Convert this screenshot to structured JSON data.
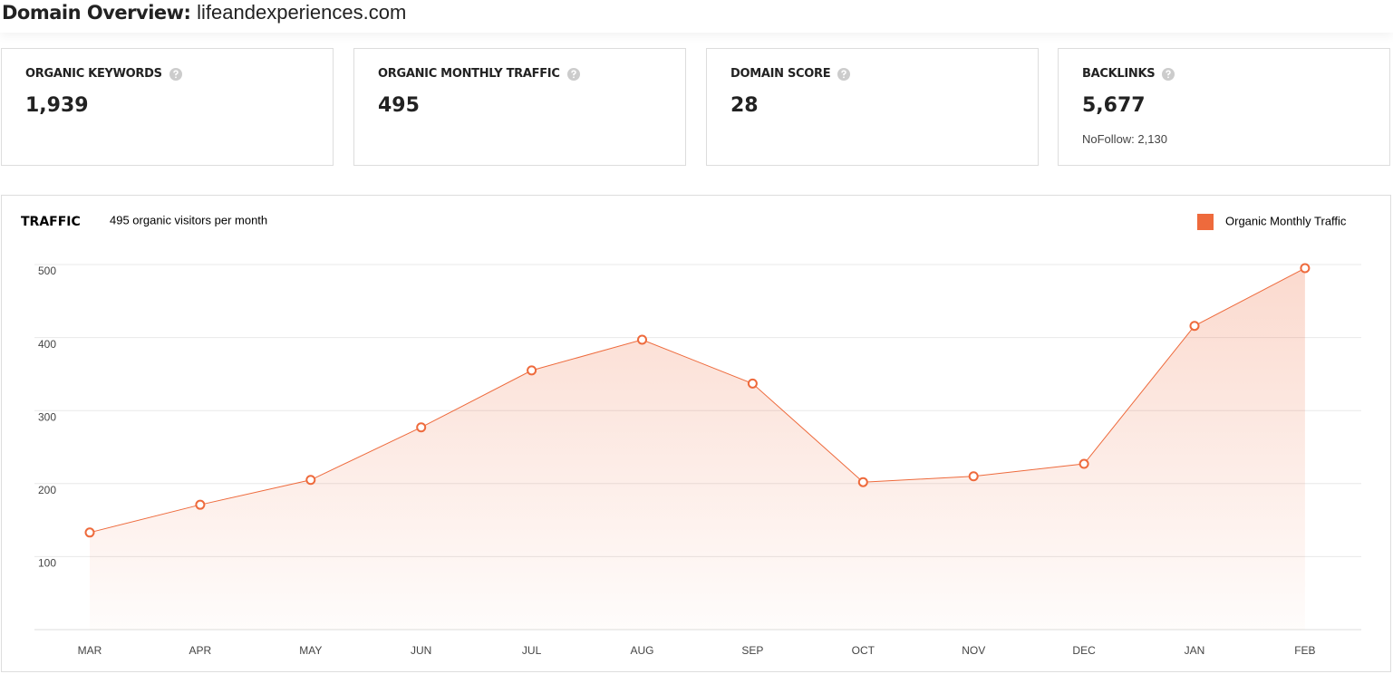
{
  "header": {
    "title": "Domain Overview:",
    "domain": "lifeandexperiences.com"
  },
  "cards": [
    {
      "label": "ORGANIC KEYWORDS",
      "value": "1,939"
    },
    {
      "label": "ORGANIC MONTHLY TRAFFIC",
      "value": "495"
    },
    {
      "label": "DOMAIN SCORE",
      "value": "28"
    },
    {
      "label": "BACKLINKS",
      "value": "5,677",
      "note": "NoFollow: 2,130"
    }
  ],
  "chart_data": {
    "type": "area",
    "title": "TRAFFIC",
    "subtitle": "495 organic visitors per month",
    "categories": [
      "MAR",
      "APR",
      "MAY",
      "JUN",
      "JUL",
      "AUG",
      "SEP",
      "OCT",
      "NOV",
      "DEC",
      "JAN",
      "FEB"
    ],
    "series": [
      {
        "name": "Organic Monthly Traffic",
        "color": "#ee6a3c",
        "values": [
          133,
          171,
          205,
          277,
          355,
          397,
          337,
          202,
          210,
          227,
          416,
          495
        ]
      }
    ],
    "ylim": [
      0,
      500
    ],
    "yticks": [
      100,
      200,
      300,
      400,
      500
    ],
    "grid": true,
    "legend": "top-right"
  }
}
